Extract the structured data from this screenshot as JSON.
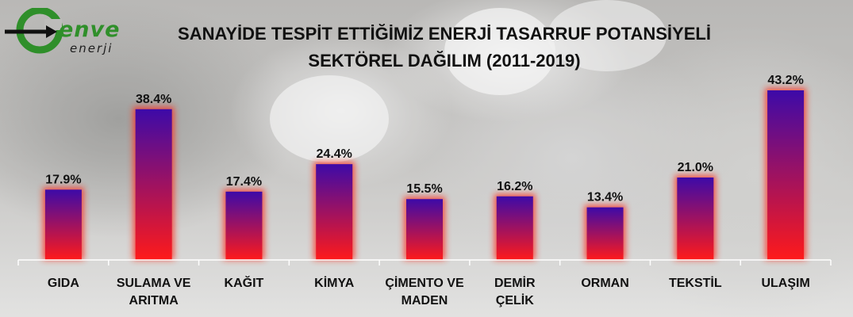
{
  "logo": {
    "wordmark": "enve",
    "subtitle": "enerji"
  },
  "chart_data": {
    "type": "bar",
    "title_lines": [
      "SANAYİDE TESPİT ETTİĞİMİZ ENERJİ TASARRUF  POTANSİYELİ",
      "SEKTÖREL DAĞILIM (2011-2019)"
    ],
    "categories": [
      [
        "GIDA"
      ],
      [
        "SULAMA VE",
        "ARITMA"
      ],
      [
        "KAĞIT"
      ],
      [
        "KİMYA"
      ],
      [
        "ÇİMENTO VE",
        "MADEN"
      ],
      [
        "DEMİR",
        "ÇELİK"
      ],
      [
        "ORMAN"
      ],
      [
        "TEKSTİL"
      ],
      [
        "ULAŞIM"
      ]
    ],
    "values": [
      17.9,
      38.4,
      17.4,
      24.4,
      15.5,
      16.2,
      13.4,
      21.0,
      43.2
    ],
    "value_labels": [
      "17.9%",
      "38.4%",
      "17.4%",
      "24.4%",
      "15.5%",
      "16.2%",
      "13.4%",
      "21.0%",
      "43.2%"
    ],
    "ylim": [
      0,
      43.2
    ],
    "bar_gradient_top": "#3d0aa8",
    "bar_gradient_bottom": "#ff1a1a",
    "glow_color": "#ff2a1a",
    "axis_color": "#ffffff"
  }
}
